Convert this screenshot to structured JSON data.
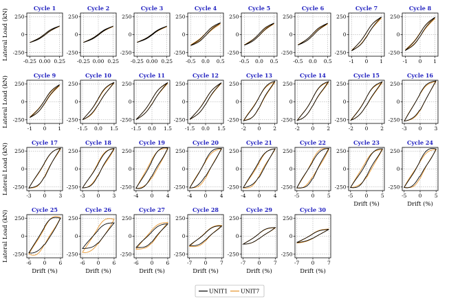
{
  "chart_data": {
    "type": "line",
    "figure_title": "",
    "ylabel": "Lateral Load (kN)",
    "xlabel": "Drift (%)",
    "title_color": "#1f1fbf",
    "series_styles": [
      {
        "name": "UNIT1",
        "color": "#000000"
      },
      {
        "name": "UNIT7",
        "color": "#e6932a"
      }
    ],
    "legend": {
      "placement": "bottom-center",
      "entries": [
        "UNIT1",
        "UNIT7"
      ]
    },
    "ylim": [
      -300,
      300
    ],
    "yticks": [
      -250,
      0,
      250
    ],
    "grid": true,
    "panels": [
      {
        "title": "Cycle 1",
        "xlim": [
          -0.3,
          0.3
        ],
        "xticks": [
          -0.25,
          0,
          0.25
        ],
        "xtick_labels": [
          "-0.25",
          "0.00",
          "0.25"
        ],
        "drift_peak": 0.25,
        "unit1_peak_load": 120,
        "unit7_peak_load": 115,
        "loop_width": 0.06
      },
      {
        "title": "Cycle 2",
        "xlim": [
          -0.3,
          0.3
        ],
        "xticks": [
          -0.25,
          0,
          0.25
        ],
        "xtick_labels": [
          "-0.25",
          "0.00",
          "0.25"
        ],
        "drift_peak": 0.25,
        "unit1_peak_load": 118,
        "unit7_peak_load": 112,
        "loop_width": 0.05
      },
      {
        "title": "Cycle 3",
        "xlim": [
          -0.3,
          0.3
        ],
        "xticks": [
          -0.25,
          0,
          0.25
        ],
        "xtick_labels": [
          "-0.25",
          "0.00",
          "0.25"
        ],
        "drift_peak": 0.25,
        "unit1_peak_load": 117,
        "unit7_peak_load": 110,
        "loop_width": 0.05
      },
      {
        "title": "Cycle 4",
        "xlim": [
          -0.6,
          0.6
        ],
        "xticks": [
          -0.5,
          0,
          0.5
        ],
        "xtick_labels": [
          "-0.5",
          "0.0",
          "0.5"
        ],
        "drift_peak": 0.5,
        "unit1_peak_load": 165,
        "unit7_peak_load": 150,
        "loop_width": 0.1
      },
      {
        "title": "Cycle 5",
        "xlim": [
          -0.6,
          0.6
        ],
        "xticks": [
          -0.5,
          0,
          0.5
        ],
        "xtick_labels": [
          "-0.5",
          "0.0",
          "0.5"
        ],
        "drift_peak": 0.5,
        "unit1_peak_load": 160,
        "unit7_peak_load": 150,
        "loop_width": 0.08
      },
      {
        "title": "Cycle 6",
        "xlim": [
          -0.6,
          0.6
        ],
        "xticks": [
          -0.5,
          0,
          0.5
        ],
        "xtick_labels": [
          "-0.5",
          "0.0",
          "0.5"
        ],
        "drift_peak": 0.5,
        "unit1_peak_load": 158,
        "unit7_peak_load": 148,
        "loop_width": 0.08
      },
      {
        "title": "Cycle 7",
        "xlim": [
          -1.2,
          1.2
        ],
        "xticks": [
          -1,
          0,
          1
        ],
        "xtick_labels": [
          "-1",
          "0",
          "1"
        ],
        "drift_peak": 1.0,
        "unit1_peak_load": 245,
        "unit7_peak_load": 230,
        "loop_width": 0.12
      },
      {
        "title": "Cycle 8",
        "xlim": [
          -1.2,
          1.2
        ],
        "xticks": [
          -1,
          0,
          1
        ],
        "xtick_labels": [
          "-1",
          "0",
          "1"
        ],
        "drift_peak": 1.0,
        "unit1_peak_load": 240,
        "unit7_peak_load": 225,
        "loop_width": 0.1
      },
      {
        "title": "Cycle 9",
        "xlim": [
          -1.2,
          1.2
        ],
        "xticks": [
          -1,
          0,
          1
        ],
        "xtick_labels": [
          "-1",
          "0",
          "1"
        ],
        "drift_peak": 1.0,
        "unit1_peak_load": 238,
        "unit7_peak_load": 225,
        "loop_width": 0.1
      },
      {
        "title": "Cycle 10",
        "xlim": [
          -1.7,
          1.7
        ],
        "xticks": [
          -1.5,
          0,
          1.5
        ],
        "xtick_labels": [
          "-1.5",
          "0.0",
          "1.5"
        ],
        "drift_peak": 1.5,
        "unit1_peak_load": 270,
        "unit7_peak_load": 262,
        "loop_width": 0.16
      },
      {
        "title": "Cycle 11",
        "xlim": [
          -1.7,
          1.7
        ],
        "xticks": [
          -1.5,
          0,
          1.5
        ],
        "xtick_labels": [
          "-1.5",
          "0.0",
          "1.5"
        ],
        "drift_peak": 1.5,
        "unit1_peak_load": 268,
        "unit7_peak_load": 258,
        "loop_width": 0.12
      },
      {
        "title": "Cycle 12",
        "xlim": [
          -1.7,
          1.7
        ],
        "xticks": [
          -1.5,
          0,
          1.5
        ],
        "xtick_labels": [
          "-1.5",
          "0.0",
          "1.5"
        ],
        "drift_peak": 1.5,
        "unit1_peak_load": 265,
        "unit7_peak_load": 258,
        "loop_width": 0.12
      },
      {
        "title": "Cycle 13",
        "xlim": [
          -2.3,
          2.3
        ],
        "xticks": [
          -2,
          0,
          2
        ],
        "xtick_labels": [
          "-2",
          "0",
          "2"
        ],
        "drift_peak": 2.0,
        "unit1_peak_load": 285,
        "unit7_peak_load": 270,
        "loop_width": 0.28
      },
      {
        "title": "Cycle 14",
        "xlim": [
          -2.3,
          2.3
        ],
        "xticks": [
          -2,
          0,
          2
        ],
        "xtick_labels": [
          "-2",
          "0",
          "2"
        ],
        "drift_peak": 2.0,
        "unit1_peak_load": 280,
        "unit7_peak_load": 268,
        "loop_width": 0.22
      },
      {
        "title": "Cycle 15",
        "xlim": [
          -2.3,
          2.3
        ],
        "xticks": [
          -2,
          0,
          2
        ],
        "xtick_labels": [
          "-2",
          "0",
          "2"
        ],
        "drift_peak": 2.0,
        "unit1_peak_load": 278,
        "unit7_peak_load": 265,
        "loop_width": 0.2
      },
      {
        "title": "Cycle 16",
        "xlim": [
          -3.4,
          3.4
        ],
        "xticks": [
          -3,
          0,
          3
        ],
        "xtick_labels": [
          "-3",
          "0",
          "3"
        ],
        "drift_peak": 3.0,
        "unit1_peak_load": 290,
        "unit7_peak_load": 280,
        "loop_width": 0.36
      },
      {
        "title": "Cycle 17",
        "xlim": [
          -3.4,
          3.4
        ],
        "xticks": [
          -3,
          0,
          3
        ],
        "xtick_labels": [
          "-3",
          "0",
          "3"
        ],
        "drift_peak": 3.0,
        "unit1_peak_load": 288,
        "unit7_peak_load": 278,
        "loop_width": 0.34
      },
      {
        "title": "Cycle 18",
        "xlim": [
          -3.4,
          3.4
        ],
        "xticks": [
          -3,
          0,
          3
        ],
        "xtick_labels": [
          "-3",
          "0",
          "3"
        ],
        "drift_peak": 3.0,
        "unit1_peak_load": 285,
        "unit7_peak_load": 275,
        "loop_width": 0.32
      },
      {
        "title": "Cycle 19",
        "xlim": [
          -4.5,
          4.5
        ],
        "xticks": [
          -4,
          0,
          4
        ],
        "xtick_labels": [
          "-4",
          "0",
          "4"
        ],
        "drift_peak": 4.0,
        "unit1_peak_load": 290,
        "unit7_peak_load": 282,
        "loop_width": 0.4
      },
      {
        "title": "Cycle 20",
        "xlim": [
          -4.5,
          4.5
        ],
        "xticks": [
          -4,
          0,
          4
        ],
        "xtick_labels": [
          "-4",
          "0",
          "4"
        ],
        "drift_peak": 4.0,
        "unit1_peak_load": 285,
        "unit7_peak_load": 278,
        "loop_width": 0.38
      },
      {
        "title": "Cycle 21",
        "xlim": [
          -4.5,
          4.5
        ],
        "xticks": [
          -4,
          0,
          4
        ],
        "xtick_labels": [
          "-4",
          "0",
          "4"
        ],
        "drift_peak": 4.0,
        "unit1_peak_load": 282,
        "unit7_peak_load": 275,
        "loop_width": 0.36
      },
      {
        "title": "Cycle 22",
        "xlim": [
          -5.6,
          5.6
        ],
        "xticks": [
          -5,
          0,
          5
        ],
        "xtick_labels": [
          "-5",
          "0",
          "5"
        ],
        "drift_peak": 5.0,
        "unit1_peak_load": 285,
        "unit7_peak_load": 275,
        "loop_width": 0.42
      },
      {
        "title": "Cycle 23",
        "xlim": [
          -5.6,
          5.6
        ],
        "xticks": [
          -5,
          0,
          5
        ],
        "xtick_labels": [
          "-5",
          "0",
          "5"
        ],
        "drift_peak": 5.0,
        "unit1_peak_load": 280,
        "unit7_peak_load": 270,
        "loop_width": 0.38
      },
      {
        "title": "Cycle 24",
        "xlim": [
          -5.6,
          5.6
        ],
        "xticks": [
          -5,
          0,
          5
        ],
        "xtick_labels": [
          "-5",
          "0",
          "5"
        ],
        "drift_peak": 5.0,
        "unit1_peak_load": 278,
        "unit7_peak_load": 268,
        "loop_width": 0.42
      },
      {
        "title": "Cycle 25",
        "xlim": [
          -6.8,
          6.8
        ],
        "xticks": [
          -6,
          0,
          6
        ],
        "xtick_labels": [
          "-6",
          "0",
          "6"
        ],
        "drift_peak": 6.0,
        "unit1_peak_load": 250,
        "unit7_peak_load": 260,
        "loop_width": 0.48
      },
      {
        "title": "Cycle 26",
        "xlim": [
          -6.8,
          6.8
        ],
        "xticks": [
          -6,
          0,
          6
        ],
        "xtick_labels": [
          "-6",
          "0",
          "6"
        ],
        "drift_peak": 6.0,
        "unit1_peak_load": 185,
        "unit7_peak_load": 235,
        "loop_width": 0.45
      },
      {
        "title": "Cycle 27",
        "xlim": [
          -6.8,
          6.8
        ],
        "xticks": [
          -6,
          0,
          6
        ],
        "xtick_labels": [
          "-6",
          "0",
          "6"
        ],
        "drift_peak": 6.0,
        "unit1_peak_load": 170,
        "unit7_peak_load": 190,
        "loop_width": 0.42
      },
      {
        "title": "Cycle 28",
        "xlim": [
          -7.8,
          7.8
        ],
        "xticks": [
          -7,
          0,
          7
        ],
        "xtick_labels": [
          "-7",
          "0",
          "7"
        ],
        "drift_peak": 7.0,
        "unit1_peak_load": 140,
        "unit7_peak_load": 150,
        "loop_width": 0.4
      },
      {
        "title": "Cycle 29",
        "xlim": [
          -7.8,
          7.8
        ],
        "xticks": [
          -7,
          0,
          7
        ],
        "xtick_labels": [
          "-7",
          "0",
          "7"
        ],
        "drift_peak": 7.0,
        "unit1_peak_load": 120,
        "unit7_peak_load": 115,
        "loop_width": 0.32
      },
      {
        "title": "Cycle 30",
        "xlim": [
          -7.8,
          7.8
        ],
        "xticks": [
          -7,
          0,
          7
        ],
        "xtick_labels": [
          "-7",
          "0",
          "7"
        ],
        "drift_peak": 7.0,
        "unit1_peak_load": 95,
        "unit7_peak_load": 100,
        "loop_width": 0.3
      }
    ],
    "panels_with_ylabel": [
      0,
      8,
      16,
      24
    ],
    "panels_with_xlabel": [
      22,
      23,
      24,
      25,
      26,
      27,
      28,
      29
    ]
  }
}
